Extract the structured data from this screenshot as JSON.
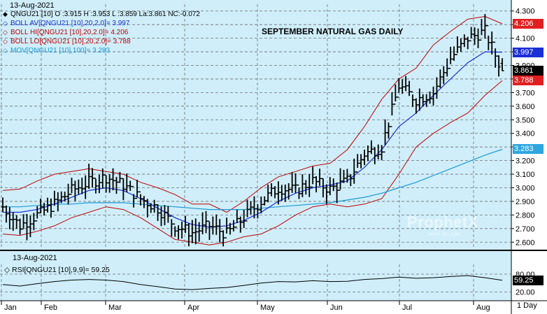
{
  "header": {
    "date": "13-Aug-2021",
    "chart_title": "SEPTEMBER NATURAL GAS DAILY"
  },
  "legend": [
    {
      "marker": "◆",
      "text": "QNGU21 [10] O :3.915 H :3.953 L :3.859 La:3.861 NC:-0.072",
      "color": "#000000"
    },
    {
      "marker": "◇",
      "text": "BOLL AV[QNGU21 [10],20,2.0]= 3.997",
      "color": "#1a2fd6"
    },
    {
      "marker": "◇",
      "text": "BOLL HI[QNGU21 [10],20,2.0]= 4.206",
      "color": "#c00000"
    },
    {
      "marker": "◇",
      "text": "BOLL LO[QNGU21 [10],20,2.0]= 3.788",
      "color": "#c00000"
    },
    {
      "marker": "◇",
      "text": "MOV[QNGU21 [10],100]= 3.283",
      "color": "#1a9ad6"
    }
  ],
  "watermark": {
    "brand": "ProphetX",
    "sub": "www.dtn.com"
  },
  "price_axis": {
    "ticks": [
      "4.300",
      "4.200",
      "4.100",
      "4.000",
      "3.900",
      "3.800",
      "3.700",
      "3.600",
      "3.500",
      "3.400",
      "3.300",
      "3.200",
      "3.100",
      "3.000",
      "2.900",
      "2.800",
      "2.700",
      "2.600"
    ],
    "badges": [
      {
        "text": "4.206",
        "value": 4.206,
        "bg": "#e02020",
        "fg": "#ffffff"
      },
      {
        "text": "3.997",
        "value": 3.997,
        "bg": "#1a2fd6",
        "fg": "#ffffff"
      },
      {
        "text": "3.861",
        "value": 3.861,
        "bg": "#000000",
        "fg": "#ffffff"
      },
      {
        "text": "3.788",
        "value": 3.788,
        "bg": "#e02020",
        "fg": "#ffffff"
      },
      {
        "text": "3.283",
        "value": 3.283,
        "bg": "#2ea6e0",
        "fg": "#ffffff"
      }
    ]
  },
  "rsi_panel": {
    "date": "13-Aug-2021",
    "legend": "RSI[QNGU21 [10],9,9]= 59.25",
    "ticks": [
      "80.00",
      "20.00"
    ],
    "badge": {
      "text": "59.25",
      "value": 59.25
    }
  },
  "time_axis": {
    "months": [
      "Jan",
      "Feb",
      "Mar",
      "Apr",
      "May",
      "Jun",
      "Jul",
      "Aug"
    ],
    "timeframe": "1 Day"
  },
  "chart_data": {
    "type": "ohlc",
    "title": "SEPTEMBER NATURAL GAS DAILY",
    "symbol": "QNGU21 [10]",
    "ylim": [
      2.55,
      4.35
    ],
    "grid": true,
    "colors": {
      "bars": "#000000",
      "boll_av": "#1a2fd6",
      "boll_band": "#c00000",
      "mov": "#1a9ad6",
      "rsi": "#000000"
    },
    "last": {
      "open": 3.915,
      "high": 3.953,
      "low": 3.859,
      "last": 3.861,
      "net_change": -0.072
    },
    "series": [
      {
        "name": "QNGU21 [10]",
        "kind": "close",
        "x": [
          "Jan",
          "Jan",
          "Jan",
          "Jan",
          "Feb",
          "Feb",
          "Feb",
          "Feb",
          "Mar",
          "Mar",
          "Mar",
          "Mar",
          "Apr",
          "Apr",
          "Apr",
          "Apr",
          "May",
          "May",
          "May",
          "May",
          "Jun",
          "Jun",
          "Jun",
          "Jun",
          "Jul",
          "Jul",
          "Jul",
          "Jul",
          "Aug",
          "Aug"
        ],
        "values": [
          2.86,
          2.72,
          2.8,
          2.88,
          2.98,
          3.04,
          3.08,
          3.02,
          2.92,
          2.85,
          2.72,
          2.67,
          2.72,
          2.66,
          2.78,
          2.9,
          3.0,
          2.98,
          3.05,
          2.99,
          3.05,
          3.25,
          3.3,
          3.75,
          3.65,
          3.7,
          3.95,
          4.1,
          4.15,
          3.86
        ]
      },
      {
        "name": "BOLL AV",
        "values": [
          2.82,
          2.82,
          2.84,
          2.88,
          2.93,
          2.98,
          3.0,
          2.98,
          2.92,
          2.85,
          2.78,
          2.73,
          2.71,
          2.72,
          2.76,
          2.82,
          2.9,
          2.96,
          3.0,
          3.02,
          3.05,
          3.15,
          3.28,
          3.45,
          3.55,
          3.68,
          3.8,
          3.92,
          4.0,
          3.997
        ]
      },
      {
        "name": "BOLL HI",
        "values": [
          2.98,
          2.99,
          3.05,
          3.1,
          3.12,
          3.14,
          3.12,
          3.1,
          3.04,
          3.0,
          2.95,
          2.88,
          2.88,
          2.82,
          2.9,
          3.0,
          3.08,
          3.12,
          3.16,
          3.18,
          3.28,
          3.45,
          3.65,
          3.8,
          3.88,
          4.05,
          4.15,
          4.24,
          4.26,
          4.206
        ]
      },
      {
        "name": "BOLL LO",
        "values": [
          2.66,
          2.65,
          2.68,
          2.72,
          2.78,
          2.82,
          2.86,
          2.84,
          2.78,
          2.7,
          2.62,
          2.6,
          2.58,
          2.6,
          2.64,
          2.66,
          2.72,
          2.8,
          2.86,
          2.88,
          2.86,
          2.88,
          2.92,
          3.1,
          3.3,
          3.4,
          3.48,
          3.55,
          3.68,
          3.788
        ]
      },
      {
        "name": "MOV",
        "values": [
          2.86,
          2.86,
          2.87,
          2.88,
          2.88,
          2.89,
          2.89,
          2.89,
          2.88,
          2.87,
          2.86,
          2.85,
          2.84,
          2.84,
          2.84,
          2.85,
          2.86,
          2.87,
          2.88,
          2.89,
          2.91,
          2.93,
          2.96,
          3.0,
          3.04,
          3.09,
          3.14,
          3.19,
          3.24,
          3.283
        ]
      },
      {
        "name": "RSI",
        "values": [
          45,
          40,
          48,
          55,
          60,
          62,
          60,
          55,
          45,
          38,
          30,
          28,
          32,
          35,
          42,
          50,
          55,
          54,
          58,
          55,
          56,
          62,
          65,
          70,
          66,
          68,
          72,
          75,
          68,
          59.25
        ]
      }
    ]
  }
}
